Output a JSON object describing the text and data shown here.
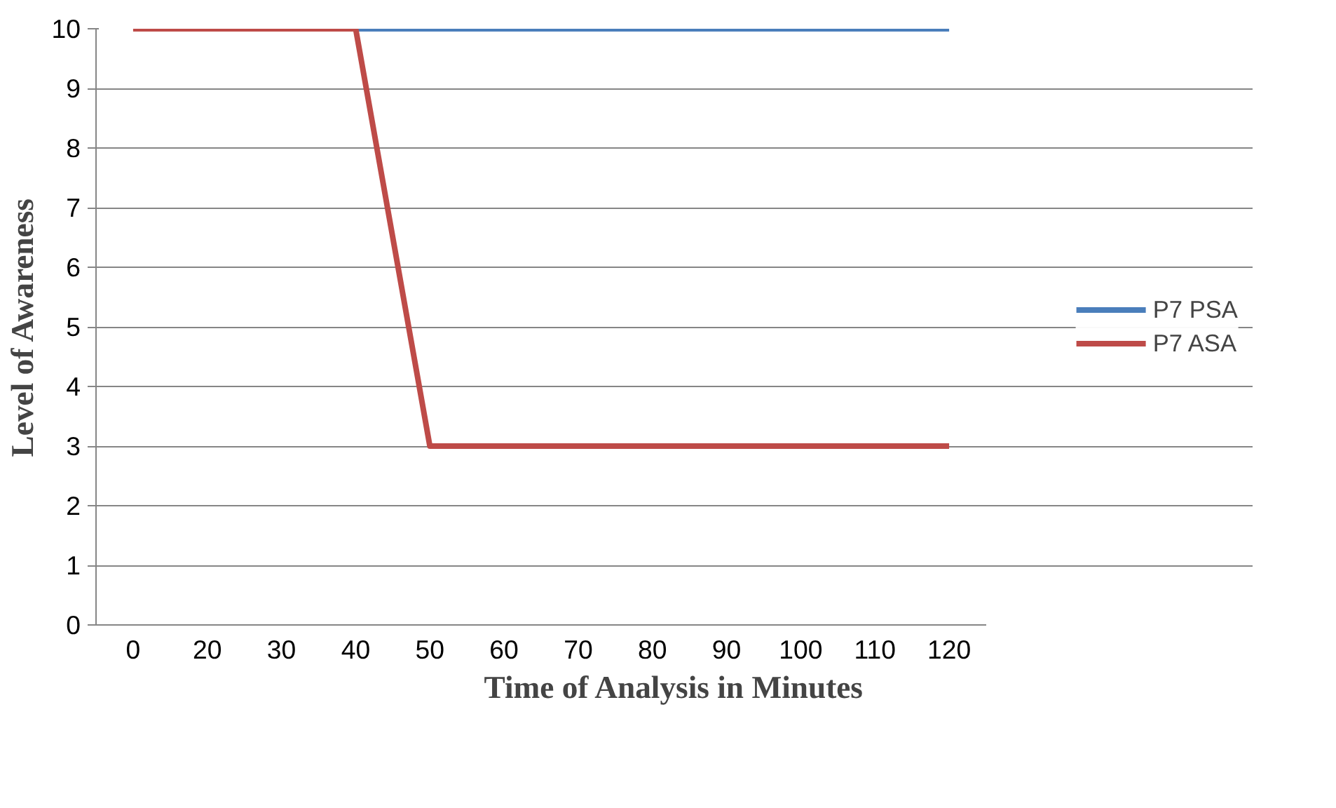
{
  "chart_data": {
    "type": "line",
    "xlabel": "Time of Analysis in Minutes",
    "ylabel": "Level of Awareness",
    "categories": [
      "0",
      "20",
      "30",
      "40",
      "50",
      "60",
      "70",
      "80",
      "90",
      "100",
      "110",
      "120"
    ],
    "series": [
      {
        "name": "P7 PSA",
        "color": "#4a7ebb",
        "values": [
          null,
          null,
          null,
          10,
          10,
          10,
          10,
          10,
          10,
          10,
          10,
          10
        ]
      },
      {
        "name": "P7 ASA",
        "color": "#be4b48",
        "values": [
          10,
          10,
          10,
          10,
          3,
          3,
          3,
          3,
          3,
          3,
          3,
          3
        ]
      }
    ],
    "ylim": [
      0,
      10
    ],
    "yticks": [
      0,
      1,
      2,
      3,
      4,
      5,
      6,
      7,
      8,
      9,
      10
    ],
    "grid": "y",
    "legend": "right",
    "marker": "none",
    "line_style": "solid"
  }
}
